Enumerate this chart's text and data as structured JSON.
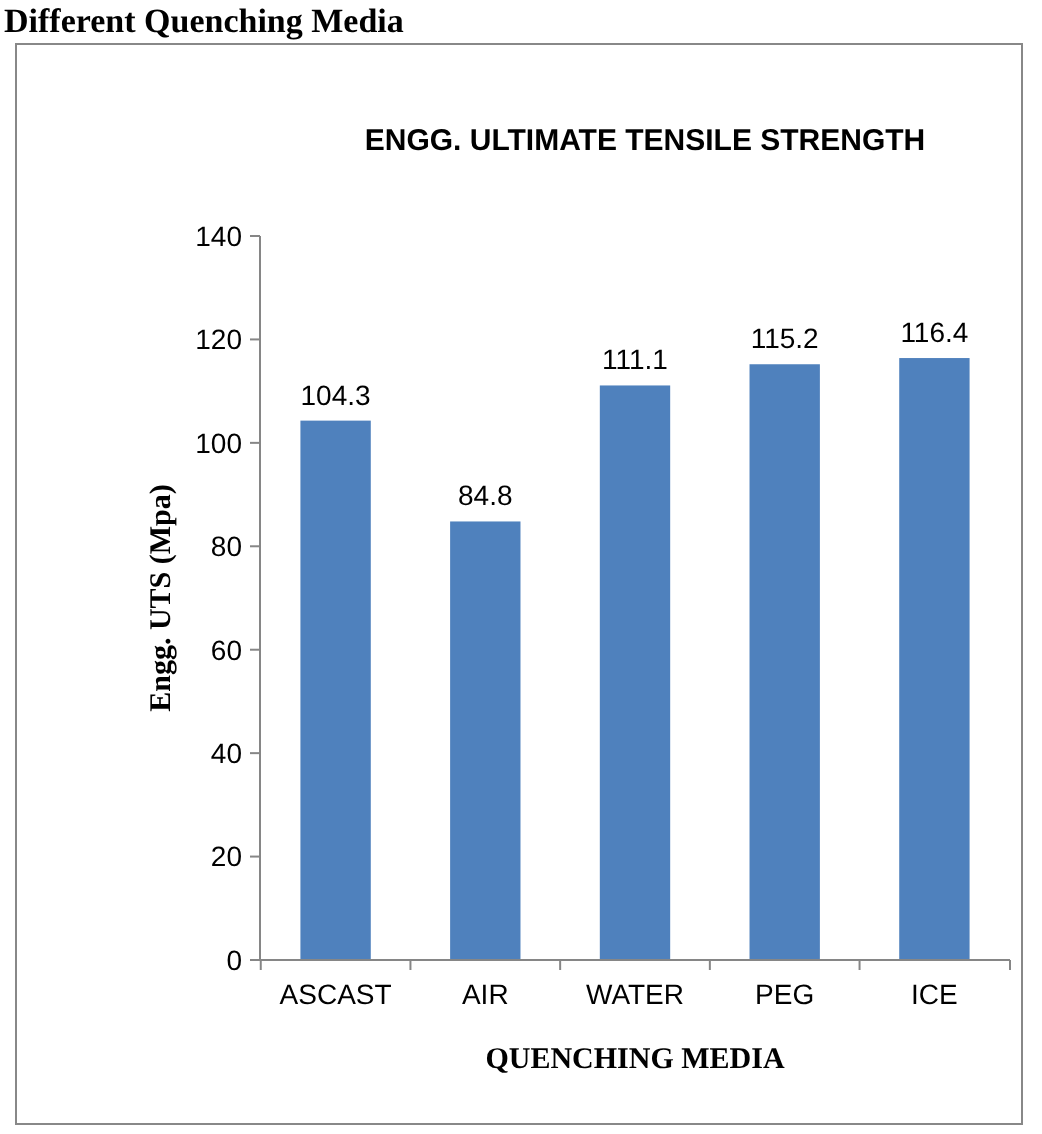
{
  "chart_data": {
    "type": "bar",
    "title": "ENGG. ULTIMATE TENSILE STRENGTH",
    "xlabel": "QUENCHING MEDIA",
    "ylabel": "Engg. UTS (Mpa)",
    "annotations": [
      "Different Quenching Media"
    ],
    "categories": [
      "ASCAST",
      "AIR",
      "WATER",
      "PEG",
      "ICE"
    ],
    "values": [
      104.3,
      84.8,
      111.1,
      115.2,
      116.4
    ],
    "color": "#4f81bd",
    "ylim": [
      0,
      140
    ],
    "yticks": [
      0,
      20,
      40,
      60,
      80,
      100,
      120,
      140
    ],
    "grid": false,
    "data_labels": true
  }
}
